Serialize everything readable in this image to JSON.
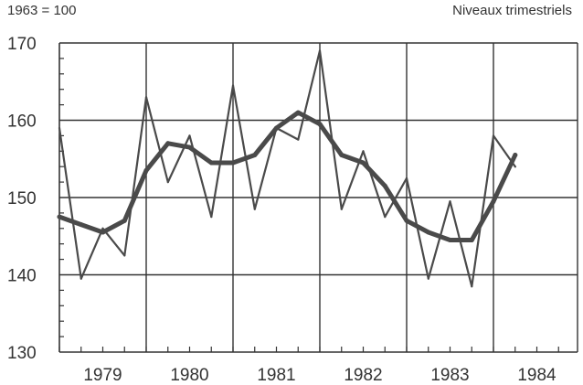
{
  "header": {
    "index_base": "1963 = 100",
    "levels_note": "Niveaux trimestriels"
  },
  "colors": {
    "axis": "#333333",
    "grid": "#333333",
    "series": "#4a4a4a"
  },
  "chart_data": {
    "type": "line",
    "title": "",
    "xlabel": "",
    "ylabel": "",
    "ylim": [
      130,
      170
    ],
    "yticks": [
      130,
      140,
      150,
      160,
      170
    ],
    "year_labels": [
      "1979",
      "1980",
      "1981",
      "1982",
      "1983",
      "1984"
    ],
    "x_unit": "quarter",
    "x_range": [
      "1979-Q1",
      "1984-Q2"
    ],
    "grid": true,
    "series": [
      {
        "style": "thin",
        "x": [
          "1979-Q1",
          "1979-Q2",
          "1979-Q3",
          "1979-Q4",
          "1980-Q1",
          "1980-Q2",
          "1980-Q3",
          "1980-Q4",
          "1981-Q1",
          "1981-Q2",
          "1981-Q3",
          "1981-Q4",
          "1982-Q1",
          "1982-Q2",
          "1982-Q3",
          "1982-Q4",
          "1983-Q1",
          "1983-Q2",
          "1983-Q3",
          "1983-Q4",
          "1984-Q1",
          "1984-Q2"
        ],
        "values": [
          159,
          139.5,
          146,
          142.5,
          163,
          152,
          158,
          147.5,
          164.5,
          148.5,
          159,
          157.5,
          169,
          148.5,
          156,
          147.5,
          152.5,
          139.5,
          149.5,
          138.5,
          158,
          154
        ]
      },
      {
        "style": "thick",
        "x": [
          "1979-Q1",
          "1979-Q2",
          "1979-Q3",
          "1979-Q4",
          "1980-Q1",
          "1980-Q2",
          "1980-Q3",
          "1980-Q4",
          "1981-Q1",
          "1981-Q2",
          "1981-Q3",
          "1981-Q4",
          "1982-Q1",
          "1982-Q2",
          "1982-Q3",
          "1982-Q4",
          "1983-Q1",
          "1983-Q2",
          "1983-Q3",
          "1983-Q4",
          "1984-Q1",
          "1984-Q2"
        ],
        "values": [
          147.5,
          146.5,
          145.5,
          147,
          153.5,
          157,
          156.5,
          154.5,
          154.5,
          155.5,
          159,
          161,
          159.5,
          155.5,
          154.5,
          151.5,
          147,
          145.5,
          144.5,
          144.5,
          149.5,
          155.5
        ]
      }
    ]
  }
}
